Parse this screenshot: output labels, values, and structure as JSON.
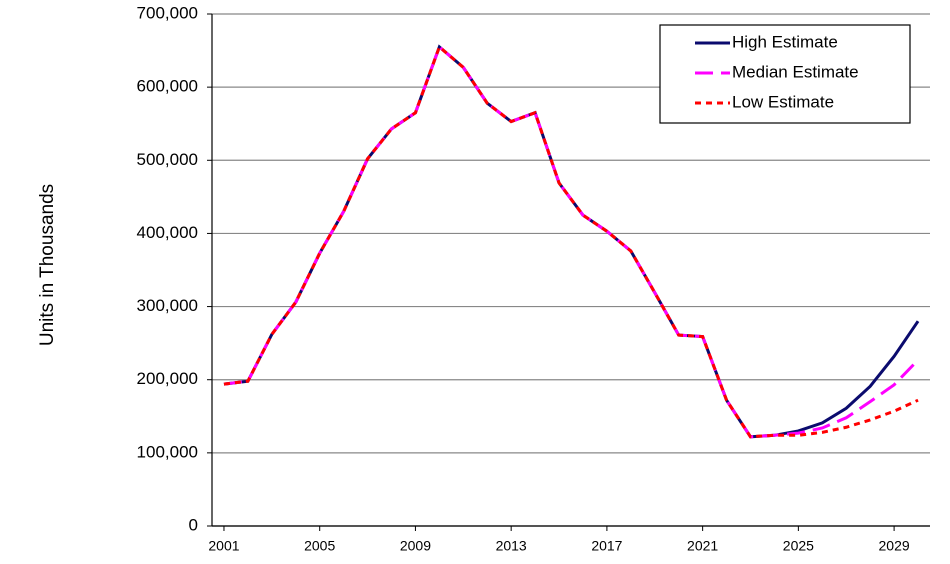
{
  "chart_data": {
    "type": "line",
    "y_label": "Units in Thousands",
    "x": [
      2001,
      2002,
      2003,
      2004,
      2005,
      2006,
      2007,
      2008,
      2009,
      2010,
      2011,
      2012,
      2013,
      2014,
      2015,
      2016,
      2017,
      2018,
      2019,
      2020,
      2021,
      2022,
      2023,
      2024,
      2025,
      2026,
      2027,
      2028,
      2029,
      2030
    ],
    "series": [
      {
        "name": "High Estimate",
        "color": "#0b0b6e",
        "dash": "solid",
        "values": [
          194000,
          198000,
          262000,
          306000,
          373000,
          430000,
          502000,
          543000,
          565000,
          655000,
          627000,
          578000,
          553000,
          565000,
          469000,
          425000,
          403000,
          376000,
          319000,
          261000,
          259000,
          172000,
          122000,
          124000,
          130000,
          141000,
          161000,
          191000,
          232000,
          280000
        ]
      },
      {
        "name": "Median Estimate",
        "color": "#ff00ff",
        "dash": "long",
        "values": [
          194000,
          198000,
          262000,
          306000,
          373000,
          430000,
          502000,
          543000,
          565000,
          655000,
          627000,
          578000,
          553000,
          565000,
          469000,
          425000,
          403000,
          376000,
          319000,
          261000,
          259000,
          172000,
          122000,
          124000,
          127000,
          134000,
          148000,
          170000,
          193000,
          227000
        ]
      },
      {
        "name": "Low Estimate",
        "color": "#ff0000",
        "dash": "short",
        "values": [
          194000,
          198000,
          262000,
          306000,
          373000,
          430000,
          502000,
          543000,
          565000,
          655000,
          627000,
          578000,
          553000,
          565000,
          469000,
          425000,
          403000,
          376000,
          319000,
          261000,
          259000,
          172000,
          122000,
          124000,
          124000,
          128000,
          135000,
          145000,
          157000,
          172000
        ]
      }
    ],
    "xlim": [
      2000.5,
      2030.5
    ],
    "xticks": [
      2001,
      2005,
      2009,
      2013,
      2017,
      2021,
      2025,
      2029
    ],
    "ylim": [
      0,
      700000
    ],
    "yticks": [
      0,
      {
        "value": 100000,
        "label": "100,000"
      },
      {
        "value": 200000,
        "label": "200,000"
      },
      {
        "value": 300000,
        "label": "300,000"
      },
      {
        "value": 400000,
        "label": "400,000"
      },
      {
        "value": 500000,
        "label": "500,000"
      },
      {
        "value": 600000,
        "label": "600,000"
      },
      {
        "value": 700000,
        "label": "700,000"
      }
    ],
    "grid": true,
    "legend": "upper right"
  }
}
